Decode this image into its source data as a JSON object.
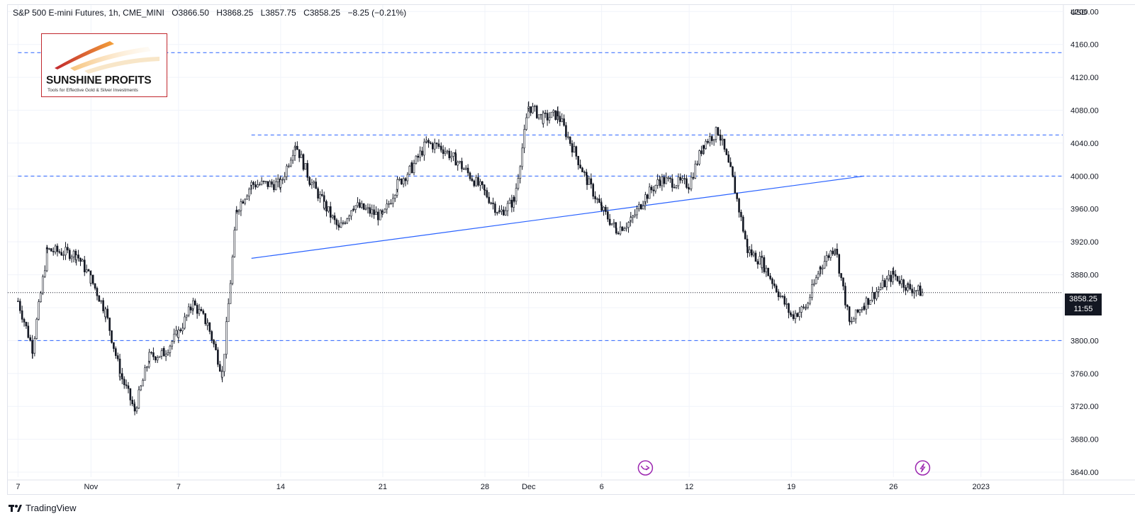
{
  "header": {
    "symbol": "S&P 500 E-mini Futures, 1h, CME_MINI",
    "open": "O3866.50",
    "high": "H3868.25",
    "low": "L3857.75",
    "close": "C3858.25",
    "change": "−8.25 (−0.21%)"
  },
  "currency": "USD",
  "logo": {
    "title": "SUNSHINE PROFITS",
    "tagline": "Tools for Effective Gold & Silver Investments"
  },
  "brand": "TradingView",
  "price_tag": {
    "price": "3858.25",
    "countdown": "11:55"
  },
  "colors": {
    "candles": "#131722",
    "levels": "#2962ff",
    "trendline": "#2962ff",
    "event_icon": "#9c27b0"
  },
  "chart_data": {
    "type": "candlestick",
    "title": "S&P 500 E-mini Futures, 1h, CME_MINI",
    "ylim": [
      3634,
      4208
    ],
    "y_ticks": [
      3640,
      3680,
      3720,
      3760,
      3800,
      3840,
      3880,
      3920,
      3960,
      4000,
      4040,
      4080,
      4120,
      4160,
      4200
    ],
    "y_tick_labels": [
      "3640.00",
      "3680.00",
      "3720.00",
      "3760.00",
      "3800.00",
      "3840.00",
      "3880.00",
      "3920.00",
      "3960.00",
      "4000.00",
      "4040.00",
      "4080.00",
      "4120.00",
      "4160.00",
      "4200.00"
    ],
    "x_ticks": [
      {
        "label": "7",
        "date": "2022-10-27"
      },
      {
        "label": "Nov",
        "date": "2022-11-01"
      },
      {
        "label": "7",
        "date": "2022-11-07"
      },
      {
        "label": "14",
        "date": "2022-11-14"
      },
      {
        "label": "21",
        "date": "2022-11-21"
      },
      {
        "label": "28",
        "date": "2022-11-28"
      },
      {
        "label": "Dec",
        "date": "2022-12-01"
      },
      {
        "label": "6",
        "date": "2022-12-06"
      },
      {
        "label": "12",
        "date": "2022-12-12"
      },
      {
        "label": "19",
        "date": "2022-12-19"
      },
      {
        "label": "26",
        "date": "2022-12-26"
      },
      {
        "label": "2023",
        "date": "2023-01-01"
      }
    ],
    "price_path": [
      [
        "2022-10-27",
        3848
      ],
      [
        "2022-10-28",
        3790
      ],
      [
        "2022-10-29",
        3910
      ],
      [
        "2022-10-31",
        3905
      ],
      [
        "2022-11-01",
        3875
      ],
      [
        "2022-11-02",
        3835
      ],
      [
        "2022-11-03",
        3760
      ],
      [
        "2022-11-04",
        3715
      ],
      [
        "2022-11-05",
        3780
      ],
      [
        "2022-11-06",
        3785
      ],
      [
        "2022-11-07",
        3810
      ],
      [
        "2022-11-08",
        3845
      ],
      [
        "2022-11-09",
        3820
      ],
      [
        "2022-11-10",
        3760
      ],
      [
        "2022-11-11",
        3960
      ],
      [
        "2022-11-12",
        3990
      ],
      [
        "2022-11-14",
        3990
      ],
      [
        "2022-11-15",
        4040
      ],
      [
        "2022-11-16",
        3995
      ],
      [
        "2022-11-17",
        3965
      ],
      [
        "2022-11-18",
        3935
      ],
      [
        "2022-11-19",
        3965
      ],
      [
        "2022-11-21",
        3950
      ],
      [
        "2022-11-22",
        3990
      ],
      [
        "2022-11-23",
        4010
      ],
      [
        "2022-11-24",
        4040
      ],
      [
        "2022-11-25",
        4035
      ],
      [
        "2022-11-26",
        4020
      ],
      [
        "2022-11-28",
        3980
      ],
      [
        "2022-11-29",
        3955
      ],
      [
        "2022-11-30",
        3970
      ],
      [
        "2022-12-01",
        4085
      ],
      [
        "2022-12-02",
        4070
      ],
      [
        "2022-12-03",
        4075
      ],
      [
        "2022-12-05",
        3995
      ],
      [
        "2022-12-06",
        3960
      ],
      [
        "2022-12-07",
        3935
      ],
      [
        "2022-12-08",
        3945
      ],
      [
        "2022-12-09",
        3975
      ],
      [
        "2022-12-10",
        3995
      ],
      [
        "2022-12-12",
        3990
      ],
      [
        "2022-12-13",
        4040
      ],
      [
        "2022-12-14",
        4055
      ],
      [
        "2022-12-15",
        3995
      ],
      [
        "2022-12-16",
        3910
      ],
      [
        "2022-12-17",
        3895
      ],
      [
        "2022-12-19",
        3830
      ],
      [
        "2022-12-20",
        3840
      ],
      [
        "2022-12-21",
        3890
      ],
      [
        "2022-12-22",
        3915
      ],
      [
        "2022-12-23",
        3820
      ],
      [
        "2022-12-24",
        3845
      ],
      [
        "2022-12-26",
        3880
      ],
      [
        "2022-12-27",
        3865
      ],
      [
        "2022-12-28",
        3858.25
      ]
    ],
    "horizontal_levels": [
      {
        "price": 4150,
        "from": "2022-10-27",
        "to": "2023-01-05"
      },
      {
        "price": 4050,
        "from": "2022-11-12",
        "to": "2023-01-05"
      },
      {
        "price": 4000,
        "from": "2022-10-27",
        "to": "2023-01-05"
      },
      {
        "price": 3800,
        "from": "2022-10-27",
        "to": "2023-01-05"
      }
    ],
    "trendline": {
      "from": [
        "2022-11-12",
        3900
      ],
      "to": [
        "2022-12-24",
        4000
      ]
    },
    "last_price": 3858.25,
    "events": [
      {
        "date": "2022-12-09",
        "icon": "dividend-arrow-icon"
      },
      {
        "date": "2022-12-28",
        "icon": "lightning-icon"
      }
    ]
  }
}
